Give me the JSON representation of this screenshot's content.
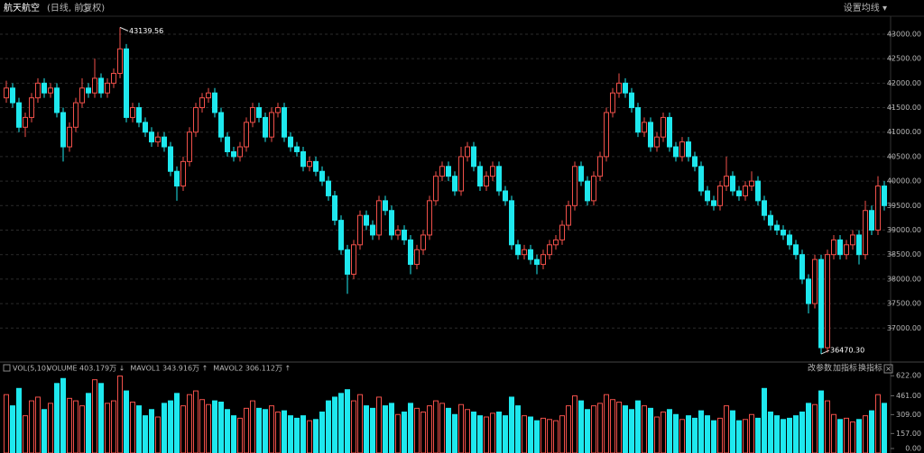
{
  "header": {
    "title": "航天航空",
    "subtitle": "(日线, 前复权)",
    "ma_button": "设置均线 ▾"
  },
  "chart_data": [
    {
      "type": "candlestick",
      "up_color": "#f0504a",
      "down_color": "#1ee8ee",
      "grid": true,
      "ylim": [
        36380,
        43330
      ],
      "yticks": [
        {
          "value": 37000,
          "label": "37000.00"
        },
        {
          "value": 37500,
          "label": "37500.00"
        },
        {
          "value": 38000,
          "label": "38000.00"
        },
        {
          "value": 38500,
          "label": "38500.00"
        },
        {
          "value": 39000,
          "label": "39000.00"
        },
        {
          "value": 39500,
          "label": "39500.00"
        },
        {
          "value": 40000,
          "label": "40000.00"
        },
        {
          "value": 40500,
          "label": "40500.00"
        },
        {
          "value": 41000,
          "label": "41000.00"
        },
        {
          "value": 41500,
          "label": "41500.00"
        },
        {
          "value": 42000,
          "label": "42000.00"
        },
        {
          "value": 42500,
          "label": "42500.00"
        },
        {
          "value": 43000,
          "label": "43000.00"
        }
      ],
      "extreme_labels": [
        "43139.56",
        "36470.30"
      ],
      "open": [
        41700,
        41900,
        41600,
        41100,
        41300,
        41700,
        42000,
        41800,
        41900,
        41400,
        40700,
        41100,
        41600,
        41900,
        41800,
        42100,
        41800,
        42000,
        42200,
        42700,
        41300,
        41500,
        41200,
        41000,
        40800,
        40900,
        40700,
        40200,
        39900,
        40400,
        41000,
        41500,
        41700,
        41800,
        41400,
        40900,
        40600,
        40500,
        40700,
        41200,
        41500,
        41300,
        40900,
        41400,
        41500,
        40900,
        40700,
        40600,
        40300,
        40400,
        40200,
        40000,
        39700,
        39200,
        38600,
        38100,
        38700,
        39300,
        39100,
        38900,
        39600,
        39400,
        38900,
        39000,
        38800,
        38300,
        38600,
        38900,
        39600,
        40100,
        40300,
        40100,
        39800,
        40500,
        40700,
        40300,
        39900,
        40100,
        40300,
        39800,
        39600,
        38700,
        38500,
        38600,
        38400,
        38300,
        38500,
        38700,
        38800,
        39100,
        39500,
        40300,
        40000,
        39600,
        40100,
        40500,
        41400,
        41800,
        42000,
        41800,
        41500,
        41000,
        41200,
        40700,
        40900,
        41300,
        40700,
        40500,
        40800,
        40500,
        40300,
        39800,
        39600,
        39500,
        39900,
        40100,
        39800,
        39700,
        39900,
        40000,
        39600,
        39300,
        39100,
        39000,
        38900,
        38700,
        38500,
        38000,
        37500,
        38400,
        36600,
        38500,
        38800,
        38500,
        38700,
        38900,
        38500,
        39400,
        39000,
        39900
      ],
      "high": [
        42050,
        42000,
        41700,
        41400,
        41800,
        42100,
        42100,
        42000,
        42000,
        41500,
        41200,
        41700,
        42100,
        42000,
        42500,
        42200,
        42100,
        42300,
        43139.56,
        42800,
        41600,
        41600,
        41300,
        41100,
        41000,
        41000,
        40800,
        40300,
        40500,
        41100,
        41600,
        41800,
        41900,
        41900,
        41500,
        41000,
        40700,
        40800,
        41300,
        41600,
        41600,
        41400,
        41500,
        41600,
        41600,
        41000,
        40800,
        40700,
        40500,
        40500,
        40300,
        40100,
        39800,
        39300,
        38700,
        38800,
        39400,
        39400,
        39200,
        39700,
        39700,
        39500,
        39100,
        39100,
        38900,
        38700,
        39000,
        39700,
        40200,
        40400,
        40400,
        40200,
        40700,
        40800,
        40800,
        40400,
        40200,
        40400,
        40400,
        39900,
        39700,
        38800,
        38700,
        38700,
        38500,
        38600,
        38800,
        38900,
        39200,
        39600,
        40400,
        40400,
        40100,
        40200,
        40600,
        41500,
        41900,
        42200,
        42100,
        41900,
        41600,
        41300,
        41300,
        41000,
        41400,
        41400,
        40800,
        40900,
        40900,
        40600,
        40400,
        39900,
        39700,
        40000,
        40500,
        40200,
        39900,
        40000,
        40200,
        40100,
        39700,
        39400,
        39200,
        39100,
        39000,
        38800,
        38600,
        38100,
        38500,
        38500,
        38600,
        38900,
        38900,
        38800,
        39000,
        39000,
        39600,
        39500,
        40100,
        40000
      ],
      "low": [
        41600,
        41500,
        41000,
        40900,
        41200,
        41600,
        41700,
        41700,
        41300,
        40400,
        40600,
        41000,
        41500,
        41700,
        41700,
        41700,
        41700,
        41900,
        42100,
        41200,
        41200,
        41100,
        40900,
        40700,
        40700,
        40600,
        40100,
        39600,
        39800,
        40300,
        40900,
        41400,
        41600,
        41300,
        40800,
        40500,
        40400,
        40400,
        40600,
        41100,
        41200,
        40800,
        40800,
        41300,
        40800,
        40600,
        40500,
        40200,
        40200,
        40100,
        39900,
        39600,
        39100,
        38500,
        37700,
        38000,
        38600,
        39000,
        38800,
        38800,
        39300,
        38800,
        38800,
        38700,
        38100,
        38200,
        38500,
        38800,
        39500,
        40000,
        40000,
        39700,
        39700,
        40400,
        40200,
        39800,
        39800,
        40000,
        39700,
        39500,
        38600,
        38400,
        38400,
        38300,
        38100,
        38200,
        38400,
        38600,
        38700,
        39000,
        39400,
        39900,
        39500,
        39500,
        40000,
        40400,
        41300,
        41700,
        41700,
        41400,
        40900,
        40900,
        40600,
        40600,
        40800,
        40600,
        40400,
        40400,
        40400,
        40200,
        39700,
        39500,
        39400,
        39400,
        39800,
        39700,
        39600,
        39600,
        39800,
        39500,
        39200,
        39000,
        38900,
        38800,
        38600,
        38400,
        37900,
        37300,
        37400,
        36470.3,
        36500,
        38400,
        38400,
        38400,
        38600,
        38300,
        38400,
        38900,
        38900,
        39400
      ],
      "close": [
        41900,
        41600,
        41100,
        41300,
        41700,
        42000,
        41800,
        41900,
        41400,
        40700,
        41100,
        41600,
        41900,
        41800,
        42100,
        41800,
        42000,
        42200,
        42700,
        41300,
        41500,
        41200,
        41000,
        40800,
        40900,
        40700,
        40200,
        39900,
        40400,
        41000,
        41500,
        41700,
        41800,
        41400,
        40900,
        40600,
        40500,
        40700,
        41200,
        41500,
        41300,
        40900,
        41400,
        41500,
        40900,
        40700,
        40600,
        40300,
        40400,
        40200,
        40000,
        39700,
        39200,
        38600,
        38100,
        38700,
        39300,
        39100,
        38900,
        39600,
        39400,
        38900,
        39000,
        38800,
        38300,
        38600,
        38900,
        39600,
        40100,
        40300,
        40100,
        39800,
        40500,
        40700,
        40300,
        39900,
        40100,
        40300,
        39800,
        39600,
        38700,
        38500,
        38600,
        38400,
        38300,
        38500,
        38700,
        38800,
        39100,
        39500,
        40300,
        40000,
        39600,
        40100,
        40500,
        41400,
        41800,
        42000,
        41800,
        41500,
        41000,
        41200,
        40700,
        40900,
        41300,
        40700,
        40500,
        40800,
        40500,
        40300,
        39800,
        39600,
        39500,
        39900,
        40100,
        39800,
        39700,
        39900,
        40000,
        39600,
        39300,
        39100,
        39000,
        38900,
        38700,
        38500,
        38000,
        37500,
        38400,
        36600,
        38500,
        38800,
        38500,
        38700,
        38900,
        38500,
        39400,
        39000,
        39900,
        39500
      ]
    },
    {
      "type": "volume",
      "title": "VOL(5,10)",
      "legend": [
        {
          "name": "VOLUME 403.179万 ↓",
          "color": "#ffffff"
        },
        {
          "name": "MAVOL1 343.916万 ↑",
          "color": "#e8e84a"
        },
        {
          "name": "MAVOL2 306.112万 ↑",
          "color": "#e040e0"
        }
      ],
      "buttons": [
        "改参数",
        "加指标",
        "换指标"
      ],
      "ylim": [
        0,
        660
      ],
      "yticks": [
        {
          "value": 0,
          "label": "0.00"
        },
        {
          "value": 157,
          "label": "157.00"
        },
        {
          "value": 309,
          "label": "309.00"
        },
        {
          "value": 461,
          "label": "461.00"
        },
        {
          "value": 622,
          "label": "622.00"
        }
      ],
      "values": [
        470,
        380,
        520,
        300,
        420,
        450,
        350,
        400,
        560,
        600,
        440,
        420,
        380,
        480,
        590,
        560,
        400,
        420,
        620,
        500,
        410,
        380,
        300,
        350,
        290,
        400,
        420,
        480,
        380,
        470,
        500,
        430,
        390,
        420,
        410,
        350,
        300,
        280,
        360,
        420,
        360,
        350,
        380,
        330,
        340,
        300,
        280,
        300,
        260,
        270,
        330,
        420,
        450,
        480,
        510,
        420,
        470,
        380,
        360,
        450,
        380,
        400,
        310,
        330,
        400,
        360,
        330,
        380,
        420,
        400,
        360,
        310,
        390,
        350,
        330,
        300,
        290,
        320,
        330,
        300,
        450,
        380,
        300,
        290,
        260,
        280,
        270,
        260,
        300,
        380,
        460,
        420,
        350,
        380,
        400,
        470,
        430,
        410,
        380,
        350,
        420,
        380,
        360,
        290,
        330,
        350,
        310,
        270,
        300,
        280,
        340,
        300,
        260,
        280,
        380,
        340,
        260,
        270,
        310,
        280,
        520,
        330,
        300,
        270,
        280,
        300,
        330,
        400,
        390,
        500,
        420,
        310,
        270,
        280,
        250,
        270,
        300,
        340,
        470,
        400
      ]
    }
  ]
}
